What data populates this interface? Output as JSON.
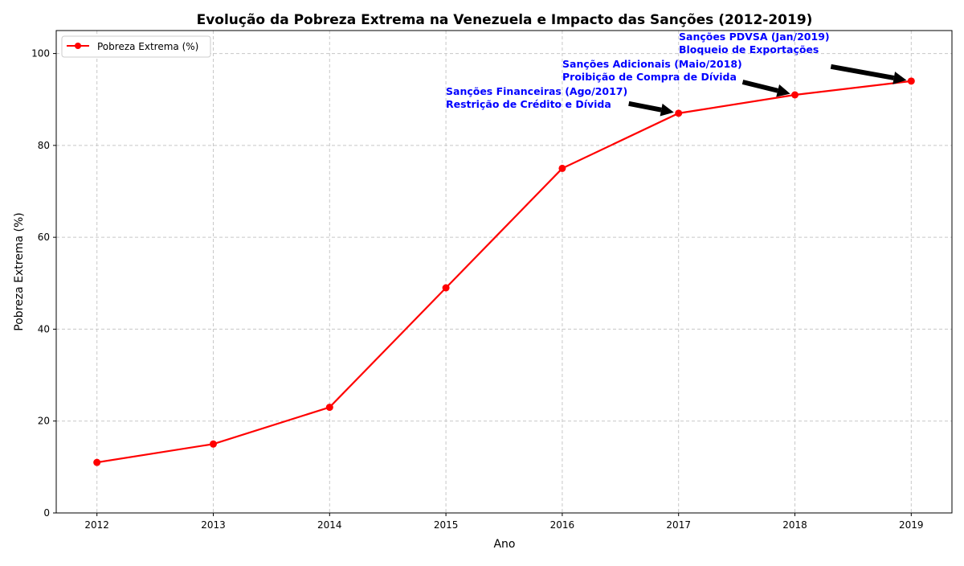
{
  "chart_data": {
    "type": "line",
    "title": "Evolução da Pobreza Extrema na Venezuela e Impacto das Sanções (2012-2019)",
    "xlabel": "Ano",
    "ylabel": "Pobreza Extrema (%)",
    "x": [
      2012,
      2013,
      2014,
      2015,
      2016,
      2017,
      2018,
      2019
    ],
    "series": [
      {
        "name": "Pobreza Extrema (%)",
        "values": [
          11,
          15,
          23,
          49,
          75,
          87,
          91,
          94
        ],
        "color": "#ff0000",
        "marker": "circle"
      }
    ],
    "xlim": [
      2011.65,
      2019.35
    ],
    "ylim": [
      0,
      105
    ],
    "xticks": [
      "2012",
      "2013",
      "2014",
      "2015",
      "2016",
      "2017",
      "2018",
      "2019"
    ],
    "yticks": [
      "0",
      "20",
      "40",
      "60",
      "80",
      "100"
    ],
    "grid": true,
    "legend_position": "upper-left",
    "annotations": [
      {
        "x": 2017,
        "y": 87,
        "lines": [
          "Sanções Financeiras (Ago/2017)",
          "Restrição de Crédito e Dívida"
        ],
        "color": "#0000ff"
      },
      {
        "x": 2018,
        "y": 91,
        "lines": [
          "Sanções Adicionais (Maio/2018)",
          "Proibição de Compra de Dívida"
        ],
        "color": "#0000ff"
      },
      {
        "x": 2019,
        "y": 94,
        "lines": [
          "Sanções PDVSA (Jan/2019)",
          "Bloqueio de Exportações"
        ],
        "color": "#0000ff"
      }
    ]
  }
}
